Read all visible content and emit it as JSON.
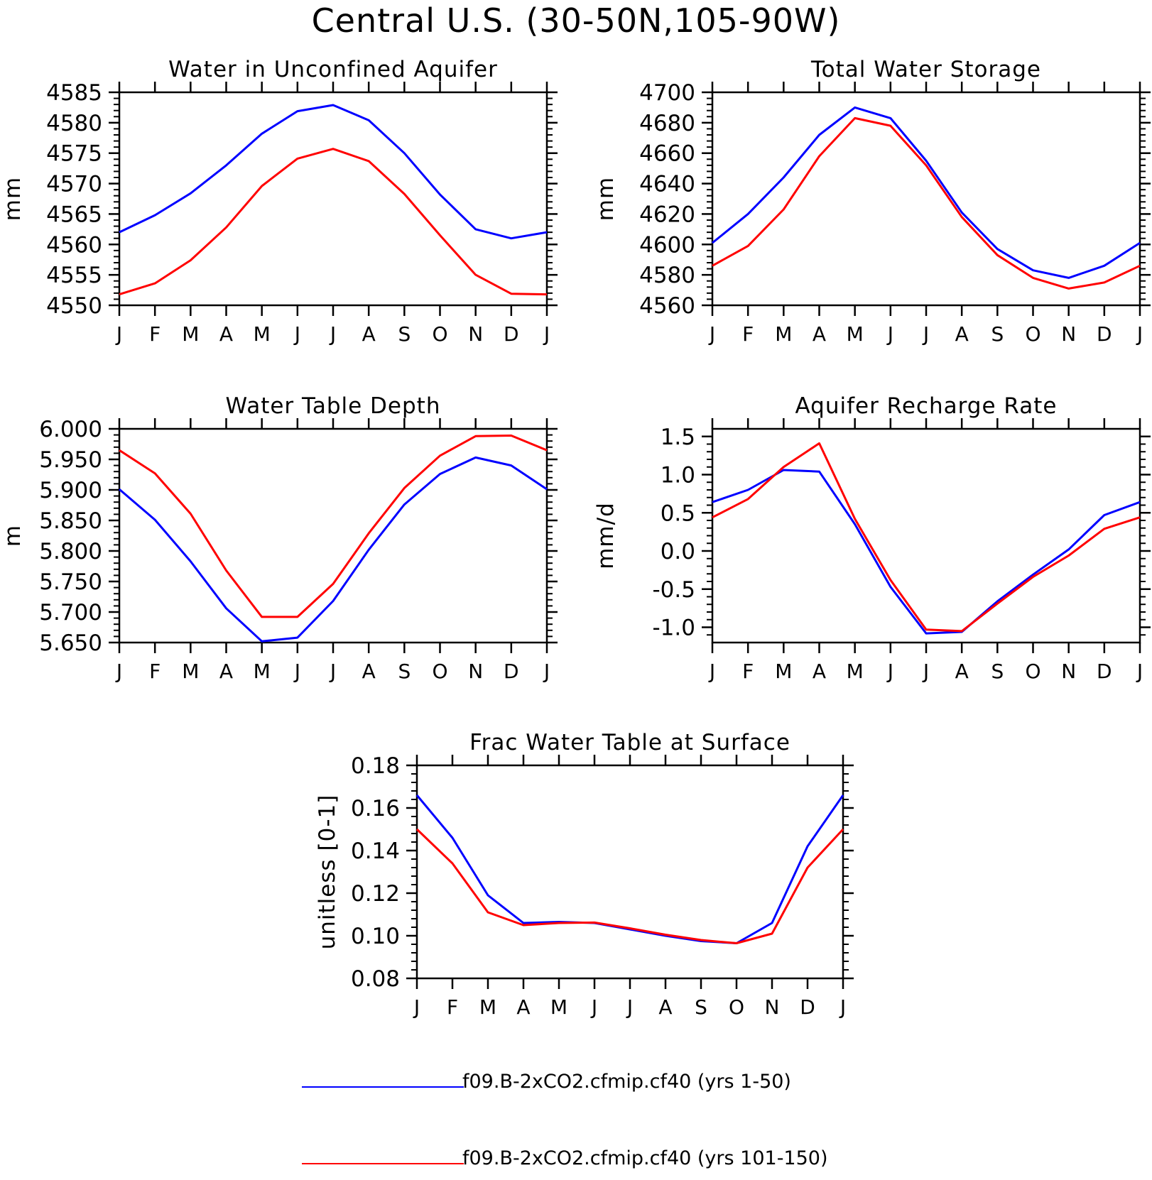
{
  "title": "Central U.S. (30-50N,105-90W)",
  "colors": {
    "series_1": "#0000ff",
    "series_2": "#ff0000"
  },
  "legend": [
    {
      "label": "f09.B-2xCO2.cfmip.cf40 (yrs 1-50)",
      "color": "#0000ff"
    },
    {
      "label": "f09.B-2xCO2.cfmip.cf40 (yrs 101-150)",
      "color": "#ff0000"
    }
  ],
  "chart_data": [
    {
      "type": "line",
      "title": "Water in Unconfined Aquifer",
      "ylabel": "mm",
      "categories": [
        "J",
        "F",
        "M",
        "A",
        "M",
        "J",
        "J",
        "A",
        "S",
        "O",
        "N",
        "D",
        "J"
      ],
      "ylim": [
        4550,
        4585
      ],
      "yticks": [
        "4550",
        "4555",
        "4560",
        "4565",
        "4570",
        "4575",
        "4580",
        "4585"
      ],
      "series": [
        {
          "name": "f09.B-2xCO2.cfmip.cf40 (yrs 1-50)",
          "color": "#0000ff",
          "values": [
            4562.0,
            4564.8,
            4568.4,
            4573.0,
            4578.2,
            4581.9,
            4582.9,
            4580.4,
            4575.0,
            4568.2,
            4562.5,
            4561.0,
            4562.0
          ]
        },
        {
          "name": "f09.B-2xCO2.cfmip.cf40 (yrs 101-150)",
          "color": "#ff0000",
          "values": [
            4551.8,
            4553.6,
            4557.4,
            4562.8,
            4569.6,
            4574.1,
            4575.7,
            4573.7,
            4568.3,
            4561.5,
            4555.0,
            4551.9,
            4551.8
          ]
        }
      ]
    },
    {
      "type": "line",
      "title": "Total Water Storage",
      "ylabel": "mm",
      "categories": [
        "J",
        "F",
        "M",
        "A",
        "M",
        "J",
        "J",
        "A",
        "S",
        "O",
        "N",
        "D",
        "J"
      ],
      "ylim": [
        4560,
        4700
      ],
      "yticks": [
        "4560",
        "4580",
        "4600",
        "4620",
        "4640",
        "4660",
        "4680",
        "4700"
      ],
      "series": [
        {
          "name": "f09.B-2xCO2.cfmip.cf40 (yrs 1-50)",
          "color": "#0000ff",
          "values": [
            4601,
            4620,
            4644,
            4672,
            4690,
            4683,
            4655,
            4621,
            4597,
            4583,
            4578,
            4586,
            4601
          ]
        },
        {
          "name": "f09.B-2xCO2.cfmip.cf40 (yrs 101-150)",
          "color": "#ff0000",
          "values": [
            4586,
            4599,
            4623,
            4658,
            4683,
            4678,
            4652,
            4618,
            4593,
            4578,
            4571,
            4575,
            4586
          ]
        }
      ]
    },
    {
      "type": "line",
      "title": "Water Table Depth",
      "ylabel": "m",
      "categories": [
        "J",
        "F",
        "M",
        "A",
        "M",
        "J",
        "J",
        "A",
        "S",
        "O",
        "N",
        "D",
        "J"
      ],
      "ylim": [
        5.65,
        6.0
      ],
      "yticks": [
        "5.650",
        "5.700",
        "5.750",
        "5.800",
        "5.850",
        "5.900",
        "5.950",
        "6.000"
      ],
      "series": [
        {
          "name": "f09.B-2xCO2.cfmip.cf40 (yrs 1-50)",
          "color": "#0000ff",
          "values": [
            5.901,
            5.851,
            5.783,
            5.706,
            5.652,
            5.658,
            5.718,
            5.802,
            5.876,
            5.926,
            5.953,
            5.94,
            5.901
          ]
        },
        {
          "name": "f09.B-2xCO2.cfmip.cf40 (yrs 101-150)",
          "color": "#ff0000",
          "values": [
            5.965,
            5.927,
            5.861,
            5.768,
            5.692,
            5.692,
            5.746,
            5.829,
            5.903,
            5.956,
            5.988,
            5.989,
            5.965
          ]
        }
      ]
    },
    {
      "type": "line",
      "title": "Aquifer Recharge Rate",
      "ylabel": "mm/d",
      "categories": [
        "J",
        "F",
        "M",
        "A",
        "M",
        "J",
        "J",
        "A",
        "S",
        "O",
        "N",
        "D",
        "J"
      ],
      "ylim": [
        -1.2,
        1.6
      ],
      "yticks": [
        "-1.0",
        "-0.5",
        "0.0",
        "0.5",
        "1.0",
        "1.5"
      ],
      "yticks_values": [
        -1.0,
        -0.5,
        0.0,
        0.5,
        1.0,
        1.5
      ],
      "series": [
        {
          "name": "f09.B-2xCO2.cfmip.cf40 (yrs 1-50)",
          "color": "#0000ff",
          "values": [
            0.64,
            0.8,
            1.06,
            1.04,
            0.35,
            -0.47,
            -1.08,
            -1.06,
            -0.66,
            -0.31,
            0.02,
            0.47,
            0.64
          ]
        },
        {
          "name": "f09.B-2xCO2.cfmip.cf40 (yrs 101-150)",
          "color": "#ff0000",
          "values": [
            0.44,
            0.68,
            1.1,
            1.41,
            0.42,
            -0.38,
            -1.03,
            -1.05,
            -0.69,
            -0.34,
            -0.06,
            0.29,
            0.44
          ]
        }
      ]
    },
    {
      "type": "line",
      "title": "Frac Water Table at Surface",
      "ylabel": "unitless [0-1]",
      "categories": [
        "J",
        "F",
        "M",
        "A",
        "M",
        "J",
        "J",
        "A",
        "S",
        "O",
        "N",
        "D",
        "J"
      ],
      "ylim": [
        0.08,
        0.18
      ],
      "yticks": [
        "0.08",
        "0.10",
        "0.12",
        "0.14",
        "0.16",
        "0.18"
      ],
      "series": [
        {
          "name": "f09.B-2xCO2.cfmip.cf40 (yrs 1-50)",
          "color": "#0000ff",
          "values": [
            0.166,
            0.146,
            0.119,
            0.106,
            0.1065,
            0.106,
            0.103,
            0.1,
            0.0975,
            0.0965,
            0.106,
            0.142,
            0.166
          ]
        },
        {
          "name": "f09.B-2xCO2.cfmip.cf40 (yrs 101-150)",
          "color": "#ff0000",
          "values": [
            0.15,
            0.134,
            0.111,
            0.105,
            0.106,
            0.1062,
            0.1035,
            0.1005,
            0.098,
            0.0965,
            0.101,
            0.132,
            0.15
          ]
        }
      ]
    }
  ]
}
